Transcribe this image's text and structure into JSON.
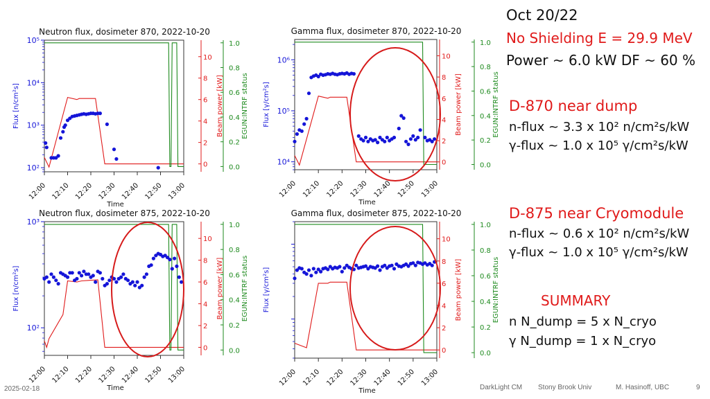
{
  "notes": {
    "date": "Oct 20/22",
    "shielding_line": "No Shielding  E = 29.9 MeV",
    "power_line": "Power ~ 6.0 kW   DF ~ 60 %",
    "d870_title": "D-870 near dump",
    "d870_n": "n-flux ~ 3.3 x 10² n/cm²s/kW",
    "d870_g": "γ-flux ~ 1.0 x 10⁵ γ/cm²s/kW",
    "d875_title": "D-875 near Cryomodule",
    "d875_n": "n-flux ~ 0.6 x 10² n/cm²s/kW",
    "d875_g": "γ-flux ~ 1.0 x 10⁵ γ/cm²s/kW",
    "summary_title": "SUMMARY",
    "summary_n": "n   N_dump = 5 x N_cryo",
    "summary_g": "γ   N_dump = 1 x N_cryo"
  },
  "footer": {
    "date": "2025-02-18",
    "event": "DarkLight CM",
    "venue": "Stony Brook Univ",
    "author": "M. Hasinoff, UBC",
    "page": "9"
  },
  "colors": {
    "flux": "#1515d8",
    "power": "#e01a1a",
    "status": "#1e8a1e",
    "highlight": "#d61a1a",
    "note_red": "#e01a1a",
    "note_black": "#111111"
  },
  "chart_data": [
    {
      "type": "scatter",
      "title": "Neutron flux, dosimeter 870, 2022-10-20",
      "xlabel": "Time",
      "x_ticks": [
        "12:00",
        "12:10",
        "12:20",
        "12:30",
        "12:40",
        "12:50",
        "13:00"
      ],
      "ylabel": "Flux [n/cm²s]",
      "y_scale": "log",
      "ylim": [
        80,
        100000
      ],
      "y_major_ticks": [
        "10²",
        "10³",
        "10⁴",
        "10⁵"
      ],
      "y2_label": "Beam power [kW]",
      "y2_ticks": [
        "0",
        "2",
        "4",
        "6",
        "8",
        "10"
      ],
      "y3_label": "EGUN:INTRF status",
      "y3_ticks": [
        "0.0",
        "0.2",
        "0.4",
        "0.6",
        "0.8",
        "1.0"
      ],
      "highlight_ellipse": false,
      "series": [
        {
          "kind": "flux",
          "x": [
            0.5,
            1,
            3,
            4,
            5,
            6,
            7,
            8,
            8.5,
            9,
            10,
            11,
            12,
            13,
            14,
            15,
            16,
            17,
            18,
            19,
            20,
            21,
            22,
            23,
            24,
            27,
            30,
            31,
            49
          ],
          "y": [
            380,
            300,
            170,
            170,
            170,
            190,
            500,
            700,
            900,
            1000,
            1300,
            1450,
            1600,
            1650,
            1700,
            1750,
            1800,
            1850,
            1800,
            1850,
            1900,
            1900,
            1850,
            1900,
            1900,
            1050,
            270,
            160,
            100
          ]
        },
        {
          "kind": "power",
          "x": [
            0,
            2,
            10,
            14,
            15,
            22,
            26,
            60
          ],
          "y": [
            0.6,
            -0.3,
            6.2,
            6.0,
            6.1,
            6.1,
            0,
            0
          ]
        },
        {
          "kind": "status",
          "x": [
            0,
            53.5,
            54,
            54.5,
            55,
            57,
            57.5,
            60
          ],
          "y": [
            1,
            1,
            0,
            0,
            1,
            1,
            0,
            0
          ]
        }
      ]
    },
    {
      "type": "scatter",
      "title": "Gamma flux, dosimeter 870, 2022-10-20",
      "xlabel": "Time",
      "x_ticks": [
        "12:00",
        "12:10",
        "12:20",
        "12:30",
        "12:40",
        "12:50",
        "13:00"
      ],
      "ylabel": "Flux [γ/cm²s]",
      "y_scale": "log",
      "ylim": [
        7000,
        2500000
      ],
      "y_major_ticks": [
        "10⁴",
        "10⁵",
        "10⁶"
      ],
      "y2_label": "Beam power [kW]",
      "y2_ticks": [
        "0",
        "2",
        "4",
        "6",
        "8",
        "10"
      ],
      "y3_label": "EGUN:INTRF status",
      "y3_ticks": [
        "0.0",
        "0.2",
        "0.4",
        "0.6",
        "0.8",
        "1.0"
      ],
      "highlight_ellipse": true,
      "series": [
        {
          "kind": "flux",
          "x": [
            0,
            1,
            2,
            3,
            4,
            5,
            6,
            7,
            8,
            9,
            10,
            11,
            12,
            13,
            14,
            15,
            16,
            17,
            18,
            19,
            20,
            21,
            22,
            23,
            24,
            25,
            27,
            28,
            29,
            30,
            31,
            32,
            33,
            34,
            35,
            36,
            37,
            38,
            39,
            40,
            41,
            42,
            44,
            45,
            46,
            47,
            48,
            49,
            50,
            51,
            52,
            53,
            55,
            56,
            57,
            58,
            59
          ],
          "y": [
            25000,
            35000,
            42000,
            40000,
            55000,
            70000,
            220000,
            450000,
            480000,
            500000,
            470000,
            520000,
            500000,
            510000,
            530000,
            520000,
            540000,
            520000,
            510000,
            530000,
            540000,
            530000,
            550000,
            520000,
            540000,
            530000,
            32000,
            28000,
            26000,
            30000,
            25000,
            28000,
            26000,
            27000,
            24000,
            30000,
            27000,
            25000,
            30000,
            26000,
            28000,
            30000,
            45000,
            80000,
            72000,
            25000,
            22000,
            28000,
            32000,
            27000,
            30000,
            42000,
            30000,
            26000,
            27000,
            25000,
            28000
          ]
        },
        {
          "kind": "power",
          "x": [
            0,
            2,
            10,
            14,
            15,
            22,
            26,
            60
          ],
          "y": [
            0.6,
            -0.3,
            6.2,
            6.0,
            6.1,
            6.1,
            0,
            0
          ]
        },
        {
          "kind": "status",
          "x": [
            0,
            54,
            54.5,
            55,
            60
          ],
          "y": [
            1,
            1,
            0,
            0,
            0
          ]
        }
      ]
    },
    {
      "type": "scatter",
      "title": "Neutron flux, dosimeter 875, 2022-10-20",
      "xlabel": "Time",
      "x_ticks": [
        "12:00",
        "12:10",
        "12:20",
        "12:30",
        "12:40",
        "12:50",
        "13:00"
      ],
      "ylabel": "Flux [n/cm²s]",
      "y_scale": "log",
      "ylim": [
        55,
        1000
      ],
      "y_major_ticks": [
        "10²",
        "10³"
      ],
      "y2_label": "Beam power [kW]",
      "y2_ticks": [
        "0",
        "2",
        "4",
        "6",
        "8",
        "10"
      ],
      "y3_label": "EGUN:INTRF status",
      "y3_ticks": [
        "0.0",
        "0.2",
        "0.4",
        "0.6",
        "0.8",
        "1.0"
      ],
      "highlight_ellipse": true,
      "series": [
        {
          "kind": "flux",
          "x": [
            0,
            1,
            2,
            3,
            4,
            5,
            6,
            7,
            8,
            9,
            10,
            11,
            12,
            13,
            14,
            15,
            16,
            17,
            18,
            19,
            20,
            21,
            22,
            23,
            24,
            25,
            26,
            27,
            28,
            29,
            30,
            31,
            32,
            33,
            34,
            35,
            36,
            37,
            38,
            39,
            40,
            41,
            42,
            43,
            44,
            45,
            46,
            47,
            48,
            49,
            50,
            51,
            52,
            53,
            54,
            55,
            56,
            57,
            58,
            59
          ],
          "y": [
            290,
            300,
            270,
            320,
            300,
            280,
            260,
            330,
            320,
            310,
            300,
            330,
            330,
            280,
            290,
            330,
            310,
            340,
            320,
            320,
            300,
            310,
            270,
            340,
            330,
            290,
            250,
            260,
            280,
            300,
            290,
            270,
            290,
            300,
            320,
            290,
            280,
            260,
            270,
            250,
            270,
            240,
            250,
            300,
            320,
            380,
            390,
            450,
            480,
            500,
            490,
            470,
            480,
            460,
            440,
            360,
            450,
            380,
            300,
            270
          ]
        },
        {
          "kind": "power",
          "x": [
            0,
            1,
            2,
            8,
            10,
            14,
            16,
            23,
            26,
            60
          ],
          "y": [
            0.6,
            0,
            0.8,
            3.0,
            6.1,
            6.0,
            6.1,
            6.2,
            0,
            0
          ]
        },
        {
          "kind": "status",
          "x": [
            0,
            53.5,
            54,
            54.5,
            55,
            57,
            57.5,
            60
          ],
          "y": [
            1,
            1,
            0,
            0,
            1,
            1,
            0,
            0
          ]
        }
      ]
    },
    {
      "type": "scatter",
      "title": "Gamma flux, dosimeter 875, 2022-10-20",
      "xlabel": "Time",
      "x_ticks": [
        "12:00",
        "12:10",
        "12:20",
        "12:30",
        "12:40",
        "12:50",
        "13:00"
      ],
      "ylabel": "Flux [γ/cm²s]",
      "y_scale": "log",
      "ylim": [
        30000,
        2000000
      ],
      "y_major_ticks": [
        "10⁶"
      ],
      "y2_label": "Beam power [kW]",
      "y2_ticks": [
        "0",
        "2",
        "4",
        "6",
        "8",
        "10"
      ],
      "y3_label": "EGUN:INTRF status",
      "y3_ticks": [
        "0.0",
        "0.2",
        "0.4",
        "0.6",
        "0.8",
        "1.0"
      ],
      "highlight_ellipse": true,
      "series": [
        {
          "kind": "flux",
          "x": [
            0,
            1,
            2,
            3,
            4,
            5,
            6,
            7,
            8,
            9,
            10,
            11,
            12,
            13,
            14,
            15,
            16,
            17,
            18,
            19,
            20,
            21,
            22,
            23,
            24,
            25,
            26,
            27,
            28,
            29,
            30,
            31,
            32,
            33,
            34,
            35,
            36,
            37,
            38,
            39,
            40,
            41,
            42,
            43,
            44,
            45,
            46,
            47,
            48,
            49,
            50,
            51,
            52,
            53,
            54,
            55,
            56,
            57,
            58,
            59
          ],
          "y": [
            350000,
            450000,
            480000,
            470000,
            420000,
            400000,
            450000,
            380000,
            470000,
            420000,
            460000,
            430000,
            470000,
            480000,
            460000,
            500000,
            470000,
            490000,
            480000,
            500000,
            430000,
            480000,
            520000,
            490000,
            470000,
            460000,
            520000,
            480000,
            490000,
            500000,
            510000,
            470000,
            500000,
            490000,
            480000,
            510000,
            450000,
            500000,
            520000,
            480000,
            510000,
            520000,
            470000,
            540000,
            510000,
            500000,
            520000,
            540000,
            510000,
            550000,
            560000,
            520000,
            570000,
            560000,
            540000,
            560000,
            530000,
            550000,
            520000,
            580000
          ]
        },
        {
          "kind": "power",
          "x": [
            0,
            5,
            10,
            14,
            15,
            22,
            26,
            60
          ],
          "y": [
            0.6,
            0.2,
            6.0,
            6.0,
            6.1,
            6.1,
            0,
            0
          ]
        },
        {
          "kind": "status",
          "x": [
            0,
            54,
            54.5,
            55,
            60
          ],
          "y": [
            1,
            1,
            0,
            0,
            0
          ]
        }
      ]
    }
  ]
}
